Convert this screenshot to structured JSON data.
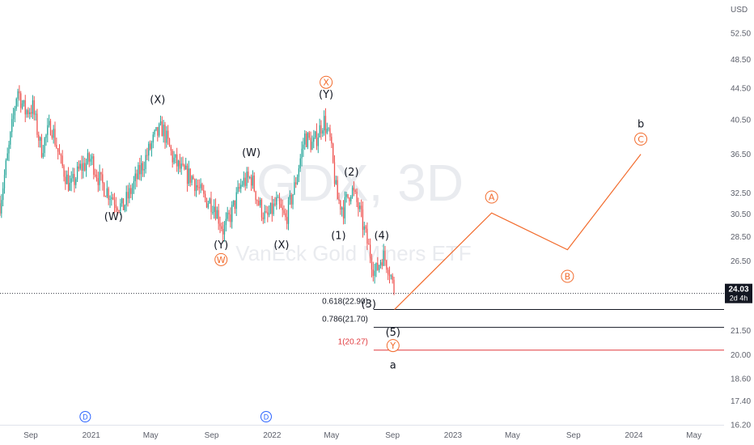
{
  "chart_data": {
    "type": "candlestick",
    "currency": "USD",
    "watermark_symbol": "GDX, 3D",
    "watermark_name": "VanEck Gold Miners ETF",
    "last_price": "24.03",
    "last_price_countdown": "2d 4h",
    "y_ticks": [
      "52.50",
      "48.50",
      "44.50",
      "40.50",
      "36.50",
      "32.50",
      "30.50",
      "28.50",
      "26.50",
      "24.50",
      "21.50",
      "20.00",
      "18.60",
      "17.40",
      "16.20"
    ],
    "x_ticks": [
      "Sep",
      "2021",
      "May",
      "Sep",
      "2022",
      "May",
      "Sep",
      "2023",
      "May",
      "Sep",
      "2024",
      "May"
    ],
    "x_tick_dates": [
      "2020-09-01",
      "2021-01-01",
      "2021-05-01",
      "2021-09-01",
      "2022-01-01",
      "2022-05-01",
      "2022-09-01",
      "2023-01-01",
      "2023-05-01",
      "2023-09-01",
      "2024-01-01",
      "2024-05-01"
    ],
    "x_range": [
      "2020-07-01",
      "2024-07-01"
    ],
    "y_range": [
      16.2,
      58.0
    ],
    "scale": "log",
    "price_path": [
      {
        "date": "2020-07-01",
        "price": 31.5
      },
      {
        "date": "2020-07-20",
        "price": 37.5
      },
      {
        "date": "2020-08-05",
        "price": 44.5
      },
      {
        "date": "2020-08-20",
        "price": 41.5
      },
      {
        "date": "2020-09-05",
        "price": 42.0
      },
      {
        "date": "2020-09-22",
        "price": 37.0
      },
      {
        "date": "2020-10-12",
        "price": 40.0
      },
      {
        "date": "2020-11-01",
        "price": 35.5
      },
      {
        "date": "2020-11-20",
        "price": 33.0
      },
      {
        "date": "2020-12-10",
        "price": 35.0
      },
      {
        "date": "2021-01-01",
        "price": 36.0
      },
      {
        "date": "2021-01-20",
        "price": 33.5
      },
      {
        "date": "2021-02-15",
        "price": 32.0
      },
      {
        "date": "2021-03-05",
        "price": 31.0
      },
      {
        "date": "2021-03-25",
        "price": 33.0
      },
      {
        "date": "2021-04-20",
        "price": 36.0
      },
      {
        "date": "2021-05-10",
        "price": 38.5
      },
      {
        "date": "2021-05-25",
        "price": 39.5
      },
      {
        "date": "2021-06-15",
        "price": 36.0
      },
      {
        "date": "2021-07-05",
        "price": 34.5
      },
      {
        "date": "2021-07-25",
        "price": 34.0
      },
      {
        "date": "2021-08-15",
        "price": 32.0
      },
      {
        "date": "2021-09-05",
        "price": 31.5
      },
      {
        "date": "2021-09-25",
        "price": 29.0
      },
      {
        "date": "2021-10-10",
        "price": 30.5
      },
      {
        "date": "2021-11-01",
        "price": 33.5
      },
      {
        "date": "2021-11-20",
        "price": 34.0
      },
      {
        "date": "2021-12-05",
        "price": 31.5
      },
      {
        "date": "2021-12-20",
        "price": 30.0
      },
      {
        "date": "2022-01-10",
        "price": 31.5
      },
      {
        "date": "2022-01-28",
        "price": 30.0
      },
      {
        "date": "2022-02-15",
        "price": 33.0
      },
      {
        "date": "2022-03-08",
        "price": 38.5
      },
      {
        "date": "2022-03-25",
        "price": 37.5
      },
      {
        "date": "2022-04-15",
        "price": 40.5
      },
      {
        "date": "2022-04-28",
        "price": 38.0
      },
      {
        "date": "2022-05-12",
        "price": 32.0
      },
      {
        "date": "2022-05-25",
        "price": 31.0
      },
      {
        "date": "2022-06-10",
        "price": 33.0
      },
      {
        "date": "2022-06-25",
        "price": 31.0
      },
      {
        "date": "2022-07-15",
        "price": 27.5
      },
      {
        "date": "2022-07-28",
        "price": 25.5
      },
      {
        "date": "2022-08-12",
        "price": 27.0
      },
      {
        "date": "2022-08-25",
        "price": 26.0
      },
      {
        "date": "2022-09-05",
        "price": 24.03
      }
    ],
    "projection": {
      "color": "#f26b2c",
      "points": [
        {
          "date": "2022-09-05",
          "price": 22.9
        },
        {
          "date": "2023-03-20",
          "price": 30.6
        },
        {
          "date": "2023-08-20",
          "price": 27.4
        },
        {
          "date": "2024-01-15",
          "price": 36.5
        }
      ]
    },
    "fib_levels": [
      {
        "label": "0.618(22.90)",
        "price": 22.9,
        "color": "#131722"
      },
      {
        "label": "0.786(21.70)",
        "price": 21.7,
        "color": "#131722"
      },
      {
        "label": "1(20.27)",
        "price": 20.27,
        "color": "#e03a3e"
      }
    ],
    "fib_start_date": "2022-07-25",
    "wave_labels": [
      {
        "text": "(W)",
        "date": "2021-02-15",
        "price": 30.3,
        "style": "plain"
      },
      {
        "text": "(X)",
        "date": "2021-05-15",
        "price": 43.0,
        "style": "plain"
      },
      {
        "text": "(Y)",
        "date": "2021-09-20",
        "price": 27.8,
        "style": "plain"
      },
      {
        "text": "W",
        "date": "2021-09-20",
        "price": 26.6,
        "style": "circle"
      },
      {
        "text": "(W)",
        "date": "2021-11-20",
        "price": 36.7,
        "style": "plain"
      },
      {
        "text": "(X)",
        "date": "2022-01-20",
        "price": 27.8,
        "style": "plain"
      },
      {
        "text": "X",
        "date": "2022-04-20",
        "price": 45.3,
        "style": "circle"
      },
      {
        "text": "(Y)",
        "date": "2022-04-20",
        "price": 43.7,
        "style": "plain"
      },
      {
        "text": "(2)",
        "date": "2022-06-10",
        "price": 34.6,
        "style": "plain"
      },
      {
        "text": "(1)",
        "date": "2022-05-15",
        "price": 28.6,
        "style": "plain"
      },
      {
        "text": "(4)",
        "date": "2022-08-10",
        "price": 28.6,
        "style": "plain"
      },
      {
        "text": "(3)",
        "date": "2022-07-15",
        "price": 23.3,
        "style": "plain"
      },
      {
        "text": "(5)",
        "date": "2022-09-02",
        "price": 21.4,
        "style": "plain"
      },
      {
        "text": "Y",
        "date": "2022-09-02",
        "price": 20.55,
        "style": "circle"
      },
      {
        "text": "a",
        "date": "2022-09-02",
        "price": 19.4,
        "style": "plain"
      },
      {
        "text": "A",
        "date": "2023-03-20",
        "price": 32.1,
        "style": "circle"
      },
      {
        "text": "B",
        "date": "2023-08-20",
        "price": 25.3,
        "style": "circle"
      },
      {
        "text": "b",
        "date": "2024-01-15",
        "price": 40.0,
        "style": "plain"
      },
      {
        "text": "C",
        "date": "2024-01-15",
        "price": 38.2,
        "style": "circle"
      }
    ],
    "event_markers": [
      {
        "text": "D",
        "date": "2020-12-20"
      },
      {
        "text": "D",
        "date": "2021-12-20"
      }
    ],
    "up_color": "#26a69a",
    "down_color": "#ef5350"
  }
}
